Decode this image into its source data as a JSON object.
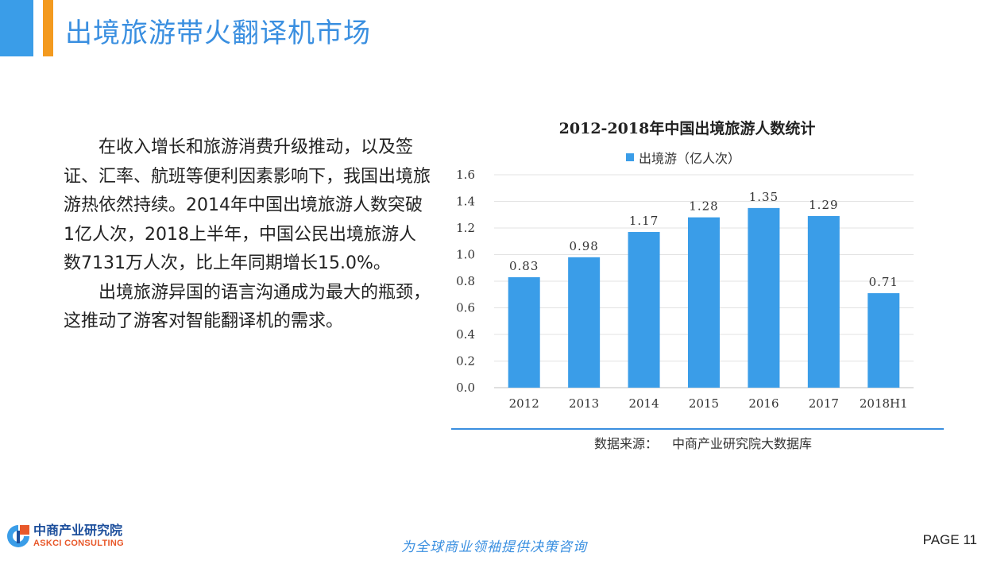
{
  "header": {
    "title": "出境旅游带火翻译机市场"
  },
  "body": {
    "paragraph1": "在收入增长和旅游消费升级推动，以及签证、汇率、航班等便利因素影响下，我国出境旅游热依然持续。2014年中国出境旅游人数突破1亿人次，2018上半年，中国公民出境旅游人数7131万人次，比上年同期增长15.0%。",
    "paragraph2": "出境旅游异国的语言沟通成为最大的瓶颈，这推动了游客对智能翻译机的需求。"
  },
  "chart_data": {
    "type": "bar",
    "title": "2012-2018年中国出境旅游人数统计",
    "categories": [
      "2012",
      "2013",
      "2014",
      "2015",
      "2016",
      "2017",
      "2018H1"
    ],
    "series": [
      {
        "name": "出境游（亿人次）",
        "values": [
          0.83,
          0.98,
          1.17,
          1.28,
          1.35,
          1.29,
          0.71
        ],
        "color": "#3a9de8"
      }
    ],
    "yticks": [
      "0.0",
      "0.2",
      "0.4",
      "0.6",
      "0.8",
      "1.0",
      "1.2",
      "1.4",
      "1.6"
    ],
    "ylim": [
      0,
      1.6
    ],
    "grid": true,
    "legend": "top"
  },
  "source": {
    "label": "数据来源：",
    "value": "中商产业研究院大数据库"
  },
  "footer": {
    "logo_cn": "中商产业研究院",
    "logo_en": "ASKCI CONSULTING",
    "slogan": "为全球商业领袖提供决策咨询",
    "page": "PAGE  11"
  },
  "colors": {
    "brand_blue": "#3a9de8",
    "accent_orange": "#f39a1f",
    "logo_navy": "#1d4f9c",
    "logo_orange": "#e8582a"
  }
}
